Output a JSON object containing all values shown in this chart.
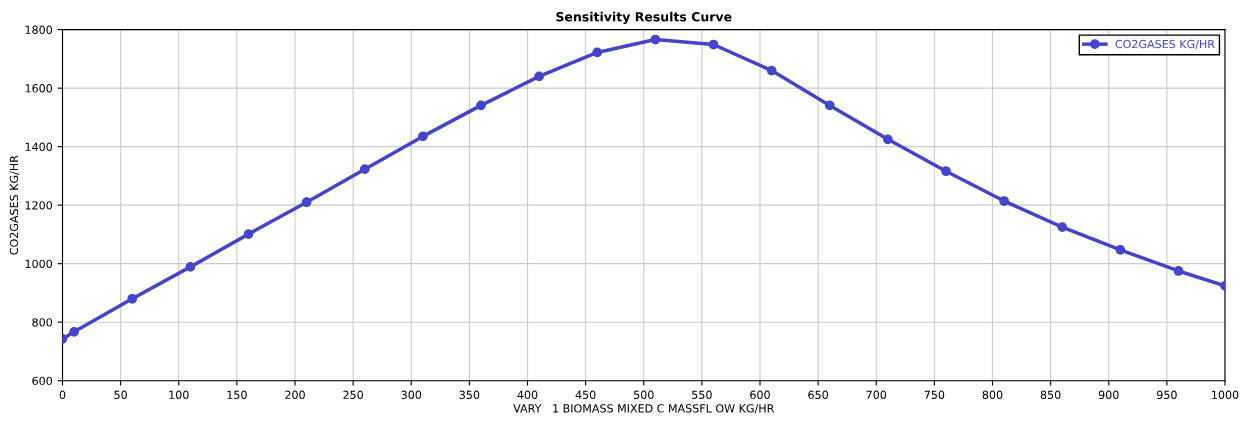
{
  "chart_data": {
    "type": "line",
    "title": "Sensitivity Results Curve",
    "xlabel": "VARY   1 BIOMASS MIXED C MASSFL OW KG/HR",
    "ylabel": "CO2GASES KG/HR",
    "x": [
      0,
      10,
      60,
      110,
      160,
      210,
      260,
      310,
      360,
      410,
      460,
      510,
      560,
      610,
      660,
      710,
      760,
      810,
      860,
      910,
      960,
      1000
    ],
    "series": [
      {
        "name": "CO2GASES KG/HR",
        "color": "#4444cc",
        "values": [
          743,
          767,
          880,
          989,
          1101,
          1210,
          1323,
          1435,
          1541,
          1640,
          1722,
          1766,
          1749,
          1660,
          1541,
          1425,
          1316,
          1214,
          1125,
          1047,
          975,
          924
        ]
      }
    ],
    "xlim": [
      0,
      1000
    ],
    "xticks": [
      0,
      50,
      100,
      150,
      200,
      250,
      300,
      350,
      400,
      450,
      500,
      550,
      600,
      650,
      700,
      750,
      800,
      850,
      900,
      950,
      1000
    ],
    "ylim": [
      600,
      1800
    ],
    "yticks": [
      600,
      800,
      1000,
      1200,
      1400,
      1600,
      1800
    ],
    "grid": true,
    "legend": "top right",
    "marker": "circle",
    "line_style": "solid"
  }
}
